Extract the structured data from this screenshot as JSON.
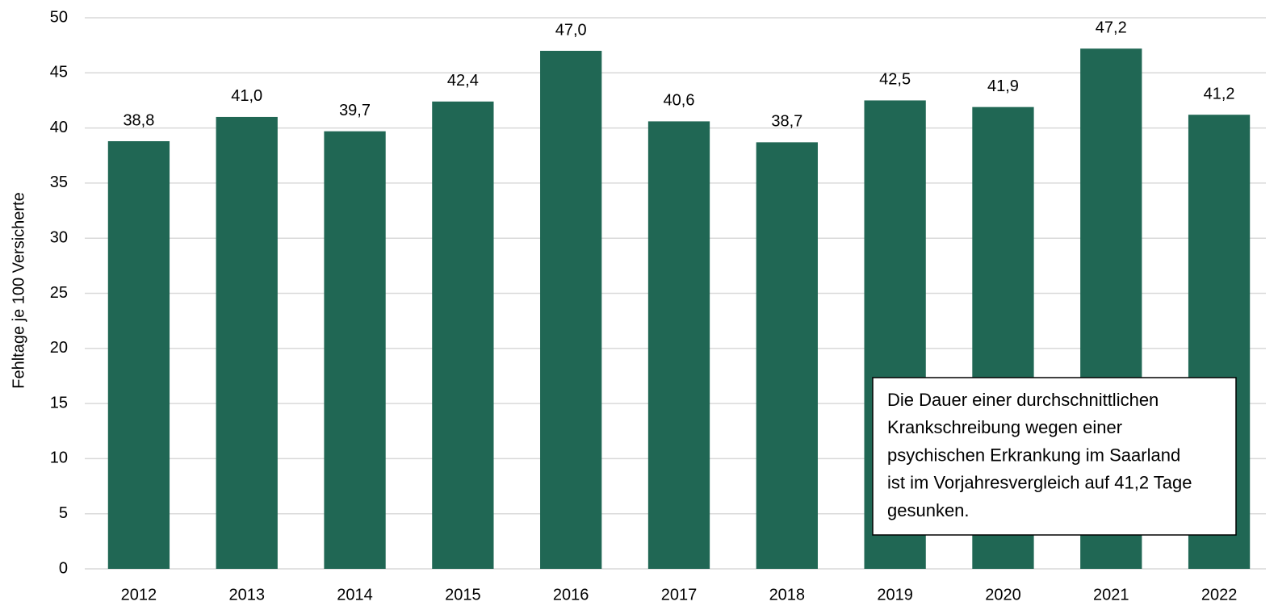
{
  "chart_data": {
    "type": "bar",
    "ylabel": "Fehltage je 100 Versicherte",
    "categories": [
      "2012",
      "2013",
      "2014",
      "2015",
      "2016",
      "2017",
      "2018",
      "2019",
      "2020",
      "2021",
      "2022"
    ],
    "values": [
      38.8,
      41.0,
      39.7,
      42.4,
      47.0,
      40.6,
      38.7,
      42.5,
      41.9,
      47.2,
      41.2
    ],
    "value_labels": [
      "38,8",
      "41,0",
      "39,7",
      "42,4",
      "47,0",
      "40,6",
      "38,7",
      "42,5",
      "41,9",
      "47,2",
      "41,2"
    ],
    "color": "#206754",
    "ylim": [
      0,
      50
    ],
    "yticks": [
      0,
      5,
      10,
      15,
      20,
      25,
      30,
      35,
      40,
      45,
      50
    ],
    "grid": true,
    "annotation": [
      "Die Dauer einer durchschnittlichen",
      "Krankschreibung wegen einer",
      "psychischen Erkrankung im Saarland",
      "ist im Vorjahresvergleich auf 41,2 Tage",
      "gesunken."
    ]
  }
}
